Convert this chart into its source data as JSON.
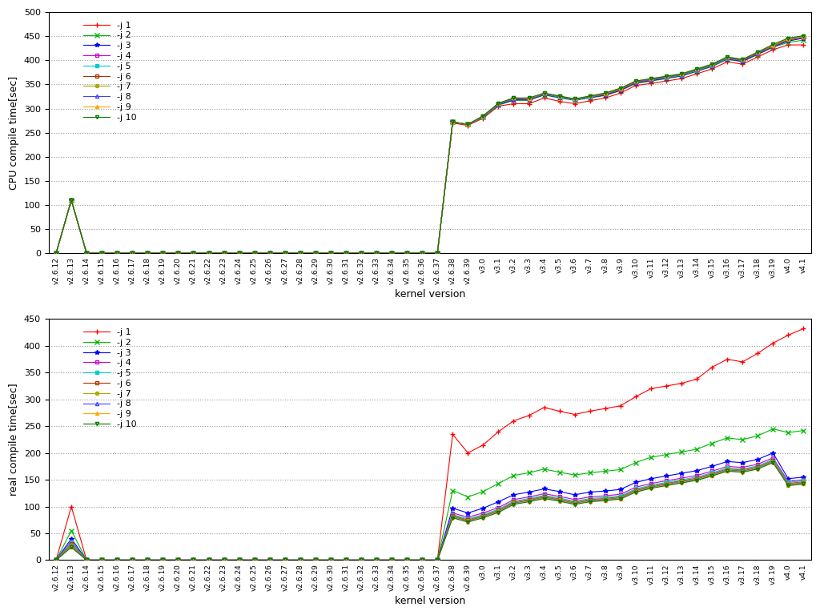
{
  "kernel_versions": [
    "v2.6.12",
    "v2.6.13",
    "v2.6.14",
    "v2.6.15",
    "v2.6.16",
    "v2.6.17",
    "v2.6.18",
    "v2.6.19",
    "v2.6.20",
    "v2.6.21",
    "v2.6.22",
    "v2.6.23",
    "v2.6.24",
    "v2.6.25",
    "v2.6.26",
    "v2.6.27",
    "v2.6.28",
    "v2.6.29",
    "v2.6.30",
    "v2.6.31",
    "v2.6.32",
    "v2.6.33",
    "v2.6.34",
    "v2.6.35",
    "v2.6.36",
    "v2.6.37",
    "v2.6.38",
    "v2.6.39",
    "v3.0",
    "v3.1",
    "v3.2",
    "v3.3",
    "v3.4",
    "v3.5",
    "v3.6",
    "v3.7",
    "v3.8",
    "v3.9",
    "v3.10",
    "v3.11",
    "v3.12",
    "v3.13",
    "v3.14",
    "v3.15",
    "v3.16",
    "v3.17",
    "v3.18",
    "v3.19",
    "v4.0",
    "v4.1"
  ],
  "series": [
    {
      "label": "-j 1",
      "color": "#ff0000",
      "marker": "+",
      "markersize": 4,
      "markerfacecolor": "#ff0000",
      "cpu": [
        0,
        110,
        0,
        0,
        0,
        0,
        0,
        0,
        0,
        0,
        0,
        0,
        0,
        0,
        0,
        0,
        0,
        0,
        0,
        0,
        0,
        0,
        0,
        0,
        0,
        0,
        270,
        265,
        280,
        305,
        310,
        310,
        322,
        315,
        310,
        316,
        322,
        332,
        348,
        352,
        357,
        362,
        372,
        382,
        397,
        392,
        407,
        422,
        432,
        432
      ],
      "real": [
        0,
        100,
        0,
        0,
        0,
        0,
        0,
        0,
        0,
        0,
        0,
        0,
        0,
        0,
        0,
        0,
        0,
        0,
        0,
        0,
        0,
        0,
        0,
        0,
        0,
        0,
        235,
        200,
        215,
        240,
        260,
        270,
        285,
        278,
        272,
        278,
        283,
        288,
        305,
        320,
        325,
        330,
        338,
        360,
        375,
        370,
        386,
        405,
        420,
        432
      ]
    },
    {
      "label": "-j 2",
      "color": "#00bb00",
      "marker": "x",
      "markersize": 4,
      "markerfacecolor": "#00bb00",
      "cpu": [
        0,
        110,
        0,
        0,
        0,
        0,
        0,
        0,
        0,
        0,
        0,
        0,
        0,
        0,
        0,
        0,
        0,
        0,
        0,
        0,
        0,
        0,
        0,
        0,
        0,
        0,
        272,
        267,
        282,
        307,
        317,
        317,
        328,
        322,
        317,
        322,
        327,
        337,
        352,
        357,
        362,
        367,
        377,
        387,
        402,
        397,
        412,
        427,
        437,
        442
      ],
      "real": [
        0,
        55,
        0,
        0,
        0,
        0,
        0,
        0,
        0,
        0,
        0,
        0,
        0,
        0,
        0,
        0,
        0,
        0,
        0,
        0,
        0,
        0,
        0,
        0,
        0,
        0,
        130,
        118,
        128,
        143,
        158,
        163,
        170,
        164,
        159,
        163,
        166,
        169,
        182,
        192,
        197,
        202,
        207,
        218,
        228,
        225,
        232,
        245,
        238,
        242
      ]
    },
    {
      "label": "-j 3",
      "color": "#0000ff",
      "marker": "*",
      "markersize": 4,
      "markerfacecolor": "#0000ff",
      "cpu": [
        0,
        110,
        0,
        0,
        0,
        0,
        0,
        0,
        0,
        0,
        0,
        0,
        0,
        0,
        0,
        0,
        0,
        0,
        0,
        0,
        0,
        0,
        0,
        0,
        0,
        0,
        272,
        267,
        283,
        308,
        318,
        318,
        329,
        323,
        318,
        323,
        328,
        338,
        353,
        358,
        363,
        368,
        378,
        388,
        403,
        398,
        413,
        428,
        440,
        446
      ],
      "real": [
        0,
        40,
        0,
        0,
        0,
        0,
        0,
        0,
        0,
        0,
        0,
        0,
        0,
        0,
        0,
        0,
        0,
        0,
        0,
        0,
        0,
        0,
        0,
        0,
        0,
        0,
        97,
        88,
        97,
        109,
        122,
        127,
        133,
        128,
        122,
        127,
        129,
        132,
        145,
        152,
        157,
        162,
        167,
        175,
        184,
        182,
        188,
        200,
        152,
        155
      ]
    },
    {
      "label": "-j 4",
      "color": "#cc00cc",
      "marker": "s",
      "markersize": 3,
      "markerfacecolor": "none",
      "cpu": [
        0,
        110,
        0,
        0,
        0,
        0,
        0,
        0,
        0,
        0,
        0,
        0,
        0,
        0,
        0,
        0,
        0,
        0,
        0,
        0,
        0,
        0,
        0,
        0,
        0,
        0,
        272,
        267,
        283,
        309,
        320,
        319,
        330,
        324,
        318,
        324,
        329,
        339,
        354,
        359,
        364,
        369,
        379,
        389,
        404,
        399,
        414,
        429,
        442,
        447
      ],
      "real": [
        0,
        35,
        0,
        0,
        0,
        0,
        0,
        0,
        0,
        0,
        0,
        0,
        0,
        0,
        0,
        0,
        0,
        0,
        0,
        0,
        0,
        0,
        0,
        0,
        0,
        0,
        88,
        80,
        88,
        98,
        113,
        118,
        124,
        119,
        113,
        118,
        120,
        123,
        136,
        143,
        148,
        153,
        158,
        166,
        175,
        173,
        179,
        191,
        147,
        150
      ]
    },
    {
      "label": "-j 5",
      "color": "#00cccc",
      "marker": "s",
      "markersize": 3,
      "markerfacecolor": "#00cccc",
      "cpu": [
        0,
        110,
        0,
        0,
        0,
        0,
        0,
        0,
        0,
        0,
        0,
        0,
        0,
        0,
        0,
        0,
        0,
        0,
        0,
        0,
        0,
        0,
        0,
        0,
        0,
        0,
        272,
        267,
        283,
        309,
        320,
        320,
        330,
        324,
        318,
        324,
        330,
        340,
        355,
        360,
        364,
        369,
        379,
        389,
        404,
        400,
        415,
        430,
        443,
        448
      ],
      "real": [
        0,
        33,
        0,
        0,
        0,
        0,
        0,
        0,
        0,
        0,
        0,
        0,
        0,
        0,
        0,
        0,
        0,
        0,
        0,
        0,
        0,
        0,
        0,
        0,
        0,
        0,
        85,
        77,
        85,
        95,
        110,
        115,
        121,
        116,
        110,
        115,
        117,
        120,
        133,
        140,
        145,
        150,
        155,
        163,
        172,
        170,
        176,
        188,
        145,
        148
      ]
    },
    {
      "label": "-j 6",
      "color": "#aa3300",
      "marker": "s",
      "markersize": 3,
      "markerfacecolor": "none",
      "cpu": [
        0,
        110,
        0,
        0,
        0,
        0,
        0,
        0,
        0,
        0,
        0,
        0,
        0,
        0,
        0,
        0,
        0,
        0,
        0,
        0,
        0,
        0,
        0,
        0,
        0,
        0,
        272,
        267,
        284,
        310,
        320,
        320,
        331,
        325,
        319,
        325,
        330,
        340,
        355,
        360,
        365,
        370,
        380,
        390,
        405,
        400,
        415,
        430,
        443,
        448
      ],
      "real": [
        0,
        30,
        0,
        0,
        0,
        0,
        0,
        0,
        0,
        0,
        0,
        0,
        0,
        0,
        0,
        0,
        0,
        0,
        0,
        0,
        0,
        0,
        0,
        0,
        0,
        0,
        83,
        75,
        83,
        93,
        108,
        113,
        119,
        114,
        108,
        113,
        115,
        118,
        131,
        138,
        143,
        148,
        153,
        161,
        170,
        168,
        174,
        186,
        143,
        146
      ]
    },
    {
      "label": "-j 7",
      "color": "#aaaa00",
      "marker": "o",
      "markersize": 3,
      "markerfacecolor": "#aaaa00",
      "cpu": [
        0,
        110,
        0,
        0,
        0,
        0,
        0,
        0,
        0,
        0,
        0,
        0,
        0,
        0,
        0,
        0,
        0,
        0,
        0,
        0,
        0,
        0,
        0,
        0,
        0,
        0,
        272,
        267,
        284,
        310,
        321,
        321,
        331,
        325,
        319,
        325,
        331,
        341,
        356,
        361,
        366,
        371,
        381,
        391,
        406,
        401,
        416,
        431,
        444,
        449
      ],
      "real": [
        0,
        28,
        0,
        0,
        0,
        0,
        0,
        0,
        0,
        0,
        0,
        0,
        0,
        0,
        0,
        0,
        0,
        0,
        0,
        0,
        0,
        0,
        0,
        0,
        0,
        0,
        82,
        74,
        82,
        92,
        107,
        112,
        118,
        113,
        107,
        112,
        114,
        117,
        130,
        137,
        142,
        147,
        152,
        160,
        169,
        167,
        173,
        185,
        142,
        145
      ]
    },
    {
      "label": "-j 8",
      "color": "#4444ff",
      "marker": "^",
      "markersize": 3,
      "markerfacecolor": "none",
      "cpu": [
        0,
        110,
        0,
        0,
        0,
        0,
        0,
        0,
        0,
        0,
        0,
        0,
        0,
        0,
        0,
        0,
        0,
        0,
        0,
        0,
        0,
        0,
        0,
        0,
        0,
        0,
        272,
        267,
        284,
        310,
        321,
        321,
        331,
        325,
        319,
        325,
        332,
        342,
        356,
        361,
        366,
        371,
        381,
        391,
        406,
        401,
        416,
        432,
        445,
        450
      ],
      "real": [
        0,
        26,
        0,
        0,
        0,
        0,
        0,
        0,
        0,
        0,
        0,
        0,
        0,
        0,
        0,
        0,
        0,
        0,
        0,
        0,
        0,
        0,
        0,
        0,
        0,
        0,
        81,
        73,
        81,
        91,
        106,
        111,
        117,
        112,
        106,
        111,
        113,
        116,
        129,
        136,
        141,
        146,
        151,
        159,
        168,
        166,
        172,
        184,
        141,
        144
      ]
    },
    {
      "label": "-j 9",
      "color": "#ffaa00",
      "marker": "^",
      "markersize": 3,
      "markerfacecolor": "#ffaa00",
      "cpu": [
        0,
        110,
        0,
        0,
        0,
        0,
        0,
        0,
        0,
        0,
        0,
        0,
        0,
        0,
        0,
        0,
        0,
        0,
        0,
        0,
        0,
        0,
        0,
        0,
        0,
        0,
        272,
        267,
        285,
        311,
        322,
        321,
        332,
        326,
        320,
        326,
        332,
        342,
        357,
        362,
        367,
        372,
        382,
        392,
        407,
        402,
        417,
        432,
        445,
        450
      ],
      "real": [
        0,
        25,
        0,
        0,
        0,
        0,
        0,
        0,
        0,
        0,
        0,
        0,
        0,
        0,
        0,
        0,
        0,
        0,
        0,
        0,
        0,
        0,
        0,
        0,
        0,
        0,
        80,
        72,
        80,
        90,
        105,
        110,
        116,
        111,
        105,
        110,
        112,
        115,
        128,
        135,
        140,
        145,
        150,
        158,
        167,
        165,
        171,
        183,
        140,
        143
      ]
    },
    {
      "label": "-j 10",
      "color": "#007700",
      "marker": "v",
      "markersize": 3,
      "markerfacecolor": "none",
      "cpu": [
        0,
        110,
        0,
        0,
        0,
        0,
        0,
        0,
        0,
        0,
        0,
        0,
        0,
        0,
        0,
        0,
        0,
        0,
        0,
        0,
        0,
        0,
        0,
        0,
        0,
        0,
        272,
        267,
        285,
        311,
        322,
        322,
        332,
        326,
        320,
        326,
        332,
        342,
        357,
        362,
        367,
        372,
        382,
        392,
        407,
        402,
        417,
        433,
        446,
        451
      ],
      "real": [
        0,
        24,
        0,
        0,
        0,
        0,
        0,
        0,
        0,
        0,
        0,
        0,
        0,
        0,
        0,
        0,
        0,
        0,
        0,
        0,
        0,
        0,
        0,
        0,
        0,
        0,
        79,
        71,
        79,
        89,
        104,
        109,
        115,
        110,
        104,
        109,
        111,
        114,
        127,
        134,
        139,
        144,
        149,
        157,
        166,
        164,
        170,
        182,
        139,
        142
      ]
    }
  ],
  "cpu_ylim": [
    0,
    500
  ],
  "cpu_yticks": [
    0,
    50,
    100,
    150,
    200,
    250,
    300,
    350,
    400,
    450,
    500
  ],
  "real_ylim": [
    0,
    450
  ],
  "real_yticks": [
    0,
    50,
    100,
    150,
    200,
    250,
    300,
    350,
    400,
    450
  ],
  "cpu_ylabel": "CPU compile time[sec]",
  "real_ylabel": "real compile time[sec]",
  "xlabel": "kernel version",
  "bg_color": "#ffffff",
  "grid_color": "#999999",
  "grid_style": ":"
}
